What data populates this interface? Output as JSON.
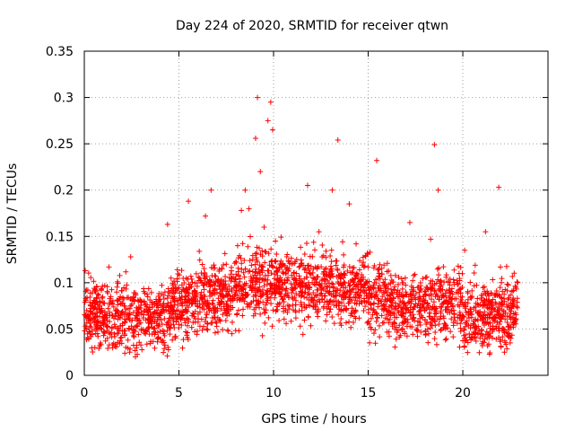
{
  "chart_data": {
    "type": "scatter",
    "title": "Day 224 of 2020, SRMTID for receiver qtwn",
    "xlabel": "GPS time / hours",
    "ylabel": "SRMTID / TECUs",
    "xlim": [
      0,
      24.5
    ],
    "ylim": [
      0,
      0.35
    ],
    "xticks": [
      {
        "value": 0,
        "label": "0"
      },
      {
        "value": 5,
        "label": "5"
      },
      {
        "value": 10,
        "label": "10"
      },
      {
        "value": 15,
        "label": "15"
      },
      {
        "value": 20,
        "label": "20"
      }
    ],
    "yticks": [
      {
        "value": 0,
        "label": "0"
      },
      {
        "value": 0.05,
        "label": "0.05"
      },
      {
        "value": 0.1,
        "label": "0.1"
      },
      {
        "value": 0.15,
        "label": "0.15"
      },
      {
        "value": 0.2,
        "label": "0.2"
      },
      {
        "value": 0.25,
        "label": "0.25"
      },
      {
        "value": 0.3,
        "label": "0.3"
      },
      {
        "value": 0.35,
        "label": "0.35"
      }
    ],
    "grid": true,
    "series": [
      {
        "name": "SRMTID",
        "marker": "+",
        "color": "#ff0000",
        "data_range": {
          "x": [
            0,
            22.9
          ],
          "y": [
            0.02,
            0.3
          ]
        },
        "points": [
          [
            0.05,
            0.113
          ],
          [
            0.2,
            0.065
          ],
          [
            0.45,
            0.078
          ],
          [
            0.7,
            0.045
          ],
          [
            1.0,
            0.062
          ],
          [
            1.3,
            0.117
          ],
          [
            1.6,
            0.055
          ],
          [
            1.9,
            0.085
          ],
          [
            2.2,
            0.071
          ],
          [
            2.45,
            0.128
          ],
          [
            2.7,
            0.02
          ],
          [
            3.0,
            0.066
          ],
          [
            3.4,
            0.052
          ],
          [
            3.8,
            0.08
          ],
          [
            4.2,
            0.045
          ],
          [
            4.4,
            0.163
          ],
          [
            4.7,
            0.07
          ],
          [
            5.0,
            0.055
          ],
          [
            5.3,
            0.082
          ],
          [
            5.5,
            0.188
          ],
          [
            5.8,
            0.09
          ],
          [
            6.1,
            0.105
          ],
          [
            6.4,
            0.172
          ],
          [
            6.7,
            0.2
          ],
          [
            6.9,
            0.116
          ],
          [
            7.2,
            0.086
          ],
          [
            7.5,
            0.12
          ],
          [
            7.8,
            0.045
          ],
          [
            8.1,
            0.14
          ],
          [
            8.3,
            0.178
          ],
          [
            8.5,
            0.2
          ],
          [
            8.7,
            0.18
          ],
          [
            8.9,
            0.125
          ],
          [
            9.05,
            0.256
          ],
          [
            9.15,
            0.3
          ],
          [
            9.3,
            0.22
          ],
          [
            9.5,
            0.16
          ],
          [
            9.7,
            0.275
          ],
          [
            9.85,
            0.295
          ],
          [
            9.95,
            0.265
          ],
          [
            10.1,
            0.145
          ],
          [
            10.4,
            0.085
          ],
          [
            10.8,
            0.123
          ],
          [
            11.2,
            0.11
          ],
          [
            11.5,
            0.07
          ],
          [
            11.8,
            0.205
          ],
          [
            12.1,
            0.115
          ],
          [
            12.4,
            0.155
          ],
          [
            12.8,
            0.096
          ],
          [
            13.1,
            0.2
          ],
          [
            13.4,
            0.254
          ],
          [
            13.7,
            0.13
          ],
          [
            14.0,
            0.185
          ],
          [
            14.4,
            0.11
          ],
          [
            14.8,
            0.09
          ],
          [
            15.1,
            0.133
          ],
          [
            15.45,
            0.232
          ],
          [
            15.7,
            0.08
          ],
          [
            16.0,
            0.112
          ],
          [
            16.4,
            0.05
          ],
          [
            16.8,
            0.1
          ],
          [
            17.2,
            0.165
          ],
          [
            17.6,
            0.075
          ],
          [
            18.0,
            0.06
          ],
          [
            18.3,
            0.147
          ],
          [
            18.5,
            0.249
          ],
          [
            18.7,
            0.2
          ],
          [
            19.0,
            0.085
          ],
          [
            19.4,
            0.07
          ],
          [
            19.8,
            0.11
          ],
          [
            20.1,
            0.135
          ],
          [
            20.5,
            0.04
          ],
          [
            20.8,
            0.06
          ],
          [
            21.2,
            0.155
          ],
          [
            21.6,
            0.05
          ],
          [
            21.9,
            0.203
          ],
          [
            22.2,
            0.025
          ],
          [
            22.5,
            0.035
          ],
          [
            22.8,
            0.095
          ]
        ]
      }
    ]
  }
}
